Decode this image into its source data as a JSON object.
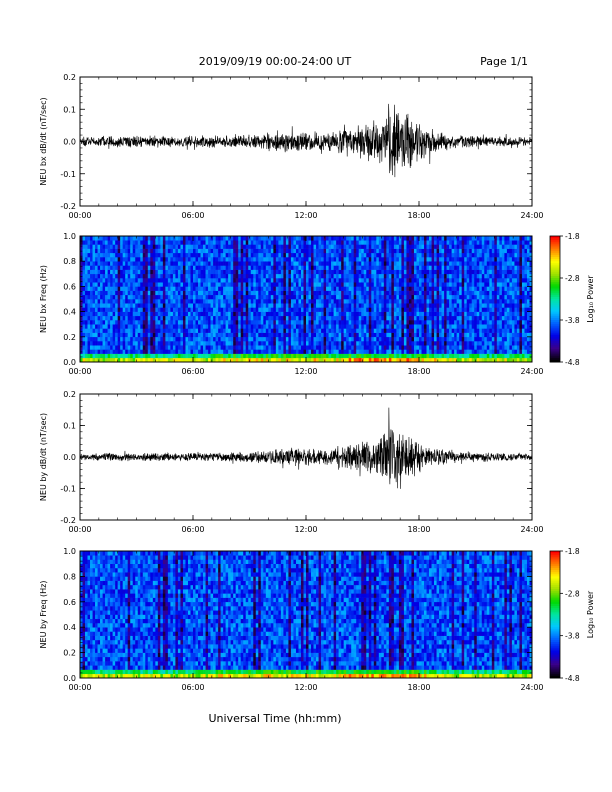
{
  "header": {
    "title": "2019/09/19  00:00-24:00 UT",
    "page": "Page 1/1"
  },
  "footer": {
    "xlabel": "Universal Time (hh:mm)"
  },
  "colors": {
    "trace": "#000000",
    "colormap": [
      "#000000",
      "#3a008a",
      "#0000e6",
      "#0060ff",
      "#00c8ff",
      "#00e6a0",
      "#00d800",
      "#a0e000",
      "#ffff00",
      "#ff8000",
      "#ff0000"
    ]
  },
  "chart_data": [
    {
      "type": "line",
      "ylabel": "NEU bx dB/dt (nT/sec)",
      "xlabel": "",
      "x_ticks": [
        "00:00",
        "06:00",
        "12:00",
        "18:00",
        "24:00"
      ],
      "y_ticks": [
        "-0.2",
        "-0.1",
        "0.0",
        "0.1",
        "0.2"
      ],
      "xlim_hours": [
        0,
        24
      ],
      "ylim": [
        -0.2,
        0.2
      ],
      "envelope": {
        "x_hours": [
          0,
          2,
          4,
          6,
          8,
          10,
          11,
          12,
          13,
          14,
          15,
          16,
          16.5,
          17,
          17.5,
          18,
          19,
          20,
          22,
          24
        ],
        "amplitude": [
          0.015,
          0.02,
          0.02,
          0.02,
          0.022,
          0.03,
          0.045,
          0.035,
          0.03,
          0.045,
          0.06,
          0.09,
          0.13,
          0.12,
          0.1,
          0.07,
          0.035,
          0.025,
          0.018,
          0.015
        ]
      }
    },
    {
      "type": "heatmap",
      "ylabel": "NEU bx Freq (Hz)",
      "xlabel": "",
      "x_ticks": [
        "00:00",
        "06:00",
        "12:00",
        "18:00",
        "24:00"
      ],
      "y_ticks": [
        "0.0",
        "0.2",
        "0.4",
        "0.6",
        "0.8",
        "1.0"
      ],
      "xlim_hours": [
        0,
        24
      ],
      "ylim": [
        0,
        1.0
      ],
      "colorbar": {
        "label": "Log₁₀ Power",
        "ticks": [
          "-1.8",
          "-2.8",
          "-3.8",
          "-4.8"
        ],
        "range": [
          -4.8,
          -1.8
        ]
      }
    },
    {
      "type": "line",
      "ylabel": "NEU by dB/dt (nT/sec)",
      "xlabel": "",
      "x_ticks": [
        "00:00",
        "06:00",
        "12:00",
        "18:00",
        "24:00"
      ],
      "y_ticks": [
        "-0.2",
        "-0.1",
        "0.0",
        "0.1",
        "0.2"
      ],
      "xlim_hours": [
        0,
        24
      ],
      "ylim": [
        -0.2,
        0.2
      ],
      "envelope": {
        "x_hours": [
          0,
          2,
          4,
          6,
          8,
          10,
          11,
          12,
          13,
          14,
          15,
          16,
          16.5,
          17,
          17.5,
          18,
          19,
          20,
          22,
          24
        ],
        "amplitude": [
          0.012,
          0.015,
          0.015,
          0.015,
          0.018,
          0.022,
          0.035,
          0.03,
          0.028,
          0.04,
          0.06,
          0.08,
          0.12,
          0.1,
          0.08,
          0.055,
          0.03,
          0.02,
          0.015,
          0.012
        ]
      }
    },
    {
      "type": "heatmap",
      "ylabel": "NEU by Freq (Hz)",
      "xlabel": "Universal Time (hh:mm)",
      "x_ticks": [
        "00:00",
        "06:00",
        "12:00",
        "18:00",
        "24:00"
      ],
      "y_ticks": [
        "0.0",
        "0.2",
        "0.4",
        "0.6",
        "0.8",
        "1.0"
      ],
      "xlim_hours": [
        0,
        24
      ],
      "ylim": [
        0,
        1.0
      ],
      "colorbar": {
        "label": "Log₁₀ Power",
        "ticks": [
          "-1.8",
          "-2.8",
          "-3.8",
          "-4.8"
        ],
        "range": [
          -4.8,
          -1.8
        ]
      }
    }
  ]
}
